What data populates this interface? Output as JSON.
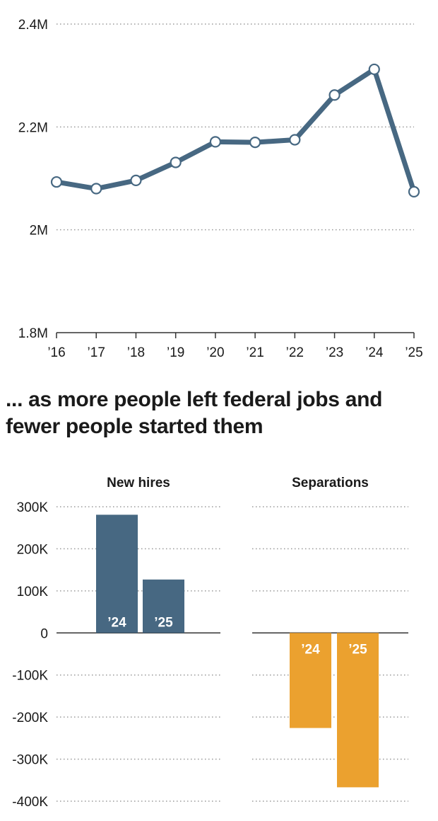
{
  "heading": "... as more people left federal jobs and fewer people started them",
  "colors": {
    "line": "#476882",
    "hires": "#476882",
    "separations": "#eba12f",
    "grid": "#999999"
  },
  "chart_data": [
    {
      "type": "line",
      "x": [
        "’16",
        "’17",
        "’18",
        "’19",
        "’20",
        "’21",
        "’22",
        "’23",
        "’24",
        "’25"
      ],
      "values": [
        2.093,
        2.08,
        2.096,
        2.131,
        2.171,
        2.17,
        2.175,
        2.262,
        2.312,
        2.074
      ],
      "ylim": [
        1.8,
        2.4
      ],
      "yticks": [
        1.8,
        2.0,
        2.2,
        2.4
      ],
      "ytick_labels": [
        "1.8M",
        "2M",
        "2.2M",
        "2.4M"
      ],
      "grid": true
    },
    {
      "type": "bar",
      "ylim": [
        -400,
        300
      ],
      "yticks": [
        300,
        200,
        100,
        0,
        -100,
        -200,
        -300,
        -400
      ],
      "ytick_labels": [
        "300K",
        "200K",
        "100K",
        "0",
        "-100K",
        "-200K",
        "-300K",
        "-400K"
      ],
      "grid": true,
      "panels": [
        {
          "title": "New hires",
          "categories": [
            "’24",
            "’25"
          ],
          "values": [
            281,
            127
          ]
        },
        {
          "title": "Separations",
          "categories": [
            "’24",
            "’25"
          ],
          "values": [
            -226,
            -367
          ]
        }
      ]
    }
  ]
}
